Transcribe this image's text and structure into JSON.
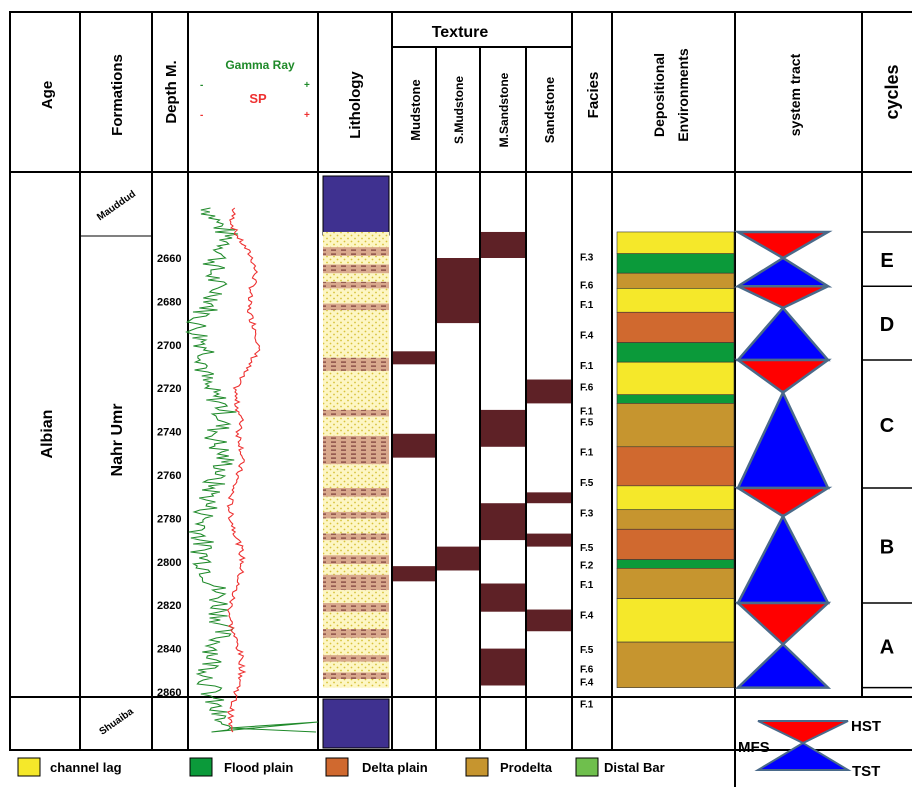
{
  "headers": {
    "age": "Age",
    "formations": "Formations",
    "depth": "Depth M.",
    "gamma_ray": "Gamma Ray",
    "sp": "SP",
    "minus": "-",
    "plus": "+",
    "lithology": "Lithology",
    "texture": "Texture",
    "mudstone": "Mudstone",
    "s_mudstone": "S.Mudstone",
    "m_sandstone": "M.Sandstone",
    "sandstone": "Sandstone",
    "facies": "Facies",
    "depositional": "Depositional",
    "environments": "Environments",
    "system_tract": "system tract",
    "cycles": "cycles"
  },
  "labels": {
    "age": "Albian",
    "formation_main": "Nahr Umr",
    "formation_top": "Mauddud",
    "formation_bottom": "Shuaiba"
  },
  "depth_ticks": [
    "2660",
    "2680",
    "2700",
    "2720",
    "2740",
    "2760",
    "2780",
    "2800",
    "2820",
    "2840",
    "2860"
  ],
  "facies_labels": [
    {
      "text": "F.3",
      "depth": 2662
    },
    {
      "text": "F.6",
      "depth": 2675
    },
    {
      "text": "F.1",
      "depth": 2684
    },
    {
      "text": "F.4",
      "depth": 2698
    },
    {
      "text": "F.1",
      "depth": 2712
    },
    {
      "text": "F.6",
      "depth": 2722
    },
    {
      "text": "F.1",
      "depth": 2733
    },
    {
      "text": "F.5",
      "depth": 2738
    },
    {
      "text": "F.1",
      "depth": 2752
    },
    {
      "text": "F.5",
      "depth": 2766
    },
    {
      "text": "F.3",
      "depth": 2780
    },
    {
      "text": "F.5",
      "depth": 2796
    },
    {
      "text": "F.2",
      "depth": 2804
    },
    {
      "text": "F.1",
      "depth": 2813
    },
    {
      "text": "F.4",
      "depth": 2827
    },
    {
      "text": "F.5",
      "depth": 2843
    },
    {
      "text": "F.6",
      "depth": 2852
    },
    {
      "text": "F.4",
      "depth": 2858
    },
    {
      "text": "F.1",
      "depth": 2868
    }
  ],
  "environments": [
    {
      "from": 2648,
      "to": 2658,
      "env": "channel_lag"
    },
    {
      "from": 2658,
      "to": 2667,
      "env": "flood_plain"
    },
    {
      "from": 2667,
      "to": 2674,
      "env": "prodelta"
    },
    {
      "from": 2674,
      "to": 2685,
      "env": "channel_lag"
    },
    {
      "from": 2685,
      "to": 2699,
      "env": "delta_plain"
    },
    {
      "from": 2699,
      "to": 2708,
      "env": "flood_plain"
    },
    {
      "from": 2708,
      "to": 2723,
      "env": "channel_lag"
    },
    {
      "from": 2723,
      "to": 2727,
      "env": "flood_plain"
    },
    {
      "from": 2727,
      "to": 2747,
      "env": "prodelta"
    },
    {
      "from": 2747,
      "to": 2765,
      "env": "delta_plain"
    },
    {
      "from": 2765,
      "to": 2776,
      "env": "channel_lag"
    },
    {
      "from": 2776,
      "to": 2785,
      "env": "prodelta"
    },
    {
      "from": 2785,
      "to": 2799,
      "env": "delta_plain"
    },
    {
      "from": 2799,
      "to": 2803,
      "env": "flood_plain"
    },
    {
      "from": 2803,
      "to": 2817,
      "env": "prodelta"
    },
    {
      "from": 2817,
      "to": 2837,
      "env": "channel_lag"
    },
    {
      "from": 2837,
      "to": 2858,
      "env": "prodelta"
    }
  ],
  "texture_blocks": [
    {
      "col": "mudstone",
      "from": 2703,
      "to": 2709
    },
    {
      "col": "mudstone",
      "from": 2741,
      "to": 2752
    },
    {
      "col": "mudstone",
      "from": 2802,
      "to": 2809
    },
    {
      "col": "s_mudstone",
      "from": 2660,
      "to": 2690
    },
    {
      "col": "s_mudstone",
      "from": 2793,
      "to": 2804
    },
    {
      "col": "m_sandstone",
      "from": 2648,
      "to": 2660
    },
    {
      "col": "m_sandstone",
      "from": 2730,
      "to": 2747
    },
    {
      "col": "m_sandstone",
      "from": 2773,
      "to": 2790
    },
    {
      "col": "m_sandstone",
      "from": 2810,
      "to": 2823
    },
    {
      "col": "m_sandstone",
      "from": 2840,
      "to": 2857
    },
    {
      "col": "sandstone",
      "from": 2716,
      "to": 2727
    },
    {
      "col": "sandstone",
      "from": 2768,
      "to": 2773
    },
    {
      "col": "sandstone",
      "from": 2787,
      "to": 2793
    },
    {
      "col": "sandstone",
      "from": 2822,
      "to": 2832
    }
  ],
  "lithology_shale_beds": [
    [
      2655,
      2659
    ],
    [
      2663,
      2667
    ],
    [
      2671,
      2674
    ],
    [
      2681,
      2684
    ],
    [
      2706,
      2712
    ],
    [
      2730,
      2733
    ],
    [
      2742,
      2755
    ],
    [
      2766,
      2770
    ],
    [
      2777,
      2780
    ],
    [
      2787,
      2790
    ],
    [
      2797,
      2801
    ],
    [
      2806,
      2813
    ],
    [
      2819,
      2823
    ],
    [
      2831,
      2835
    ],
    [
      2843,
      2846
    ],
    [
      2851,
      2854
    ]
  ],
  "cycles": [
    {
      "name": "E",
      "from": 2648,
      "to": 2673,
      "mfs": 2660
    },
    {
      "name": "D",
      "from": 2673,
      "to": 2707,
      "mfs": 2683
    },
    {
      "name": "C",
      "from": 2707,
      "to": 2766,
      "mfs": 2722
    },
    {
      "name": "B",
      "from": 2766,
      "to": 2819,
      "mfs": 2779
    },
    {
      "name": "A",
      "from": 2819,
      "to": 2858,
      "mfs": 2838
    }
  ],
  "system_tract_legend": {
    "hst": "HST",
    "mfs": "MFS",
    "tst": "TST"
  },
  "legend": [
    {
      "label": "channel lag",
      "color": "#f5e82a"
    },
    {
      "label": "Flood plain",
      "color": "#0b9a3a"
    },
    {
      "label": "Delta plain",
      "color": "#d0692f"
    },
    {
      "label": "Prodelta",
      "color": "#c6952f"
    },
    {
      "label": "Distal Bar",
      "color": "#6fbf4d"
    }
  ],
  "colors": {
    "channel_lag": "#f5e82a",
    "flood_plain": "#0b9a3a",
    "delta_plain": "#d0692f",
    "prodelta": "#c6952f",
    "distal_bar": "#6fbf4d",
    "texture_block": "#5e2126",
    "lithology_sand": "#fdf6c4",
    "lithology_shale": "#d9a98d",
    "carbonate": "#3f3190",
    "hst": "#ff0000",
    "tst": "#0000ff",
    "triangle_border": "#4a6a8a",
    "gamma": "#1f8a2a",
    "sp": "#ee3030"
  }
}
